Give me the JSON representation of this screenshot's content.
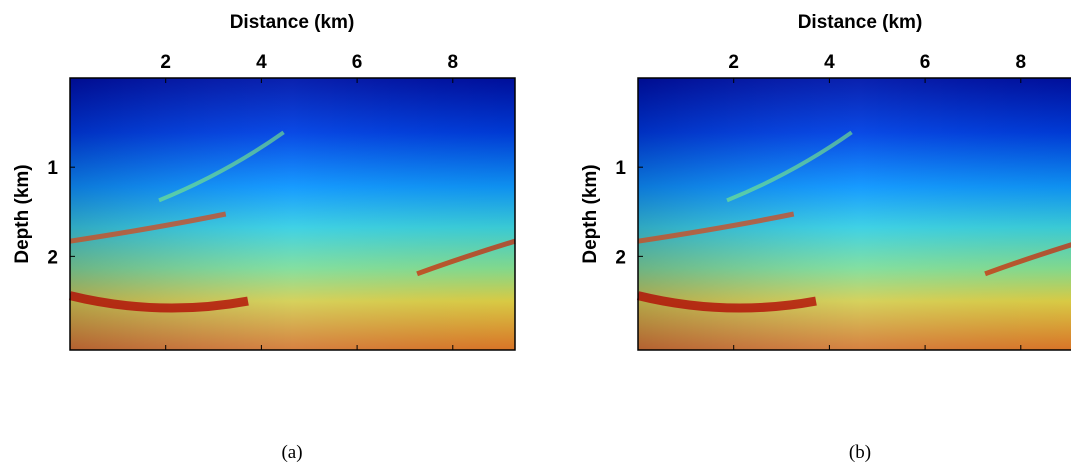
{
  "chart_data": [
    {
      "type": "image",
      "caption": "(a)",
      "xlabel": "Distance (km)",
      "ylabel": "Depth (km)",
      "xlim": [
        0,
        9.3
      ],
      "ylim": [
        0,
        3.05
      ],
      "xticks": [
        2,
        4,
        6,
        8
      ],
      "yticks": [
        1,
        2
      ]
    },
    {
      "type": "image",
      "caption": "(b)",
      "xlabel": "Distance (km)",
      "ylabel": "Depth (km)",
      "xlim": [
        0,
        9.3
      ],
      "ylim": [
        0,
        3.05
      ],
      "xticks": [
        2,
        4,
        6,
        8
      ],
      "yticks": [
        1,
        2
      ]
    }
  ]
}
